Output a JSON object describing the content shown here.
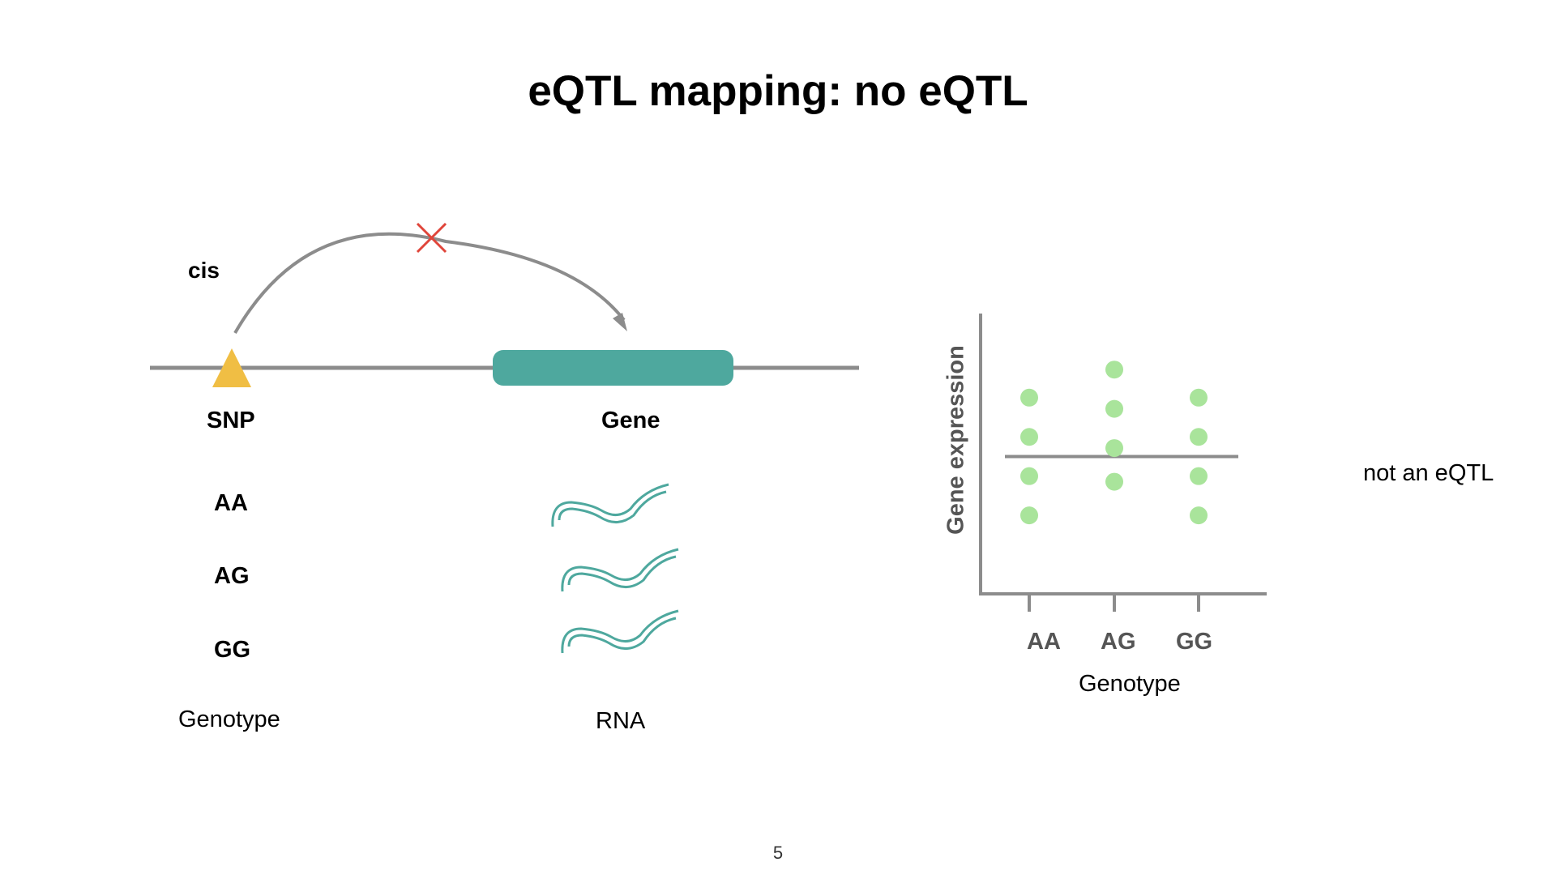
{
  "title": "eQTL mapping: no eQTL",
  "diagram": {
    "cis_label": "cis",
    "snp_label": "SNP",
    "gene_label": "Gene",
    "genotypes": [
      "AA",
      "AG",
      "GG"
    ],
    "genotype_caption": "Genotype",
    "rna_caption": "RNA",
    "colors": {
      "snp_marker": "#f0be44",
      "gene_body": "#4ea89e",
      "rna": "#4ea89e",
      "arrow": "#8c8c8c",
      "blocked_cross": "#e0453a"
    }
  },
  "plot": {
    "y_label": "Gene expression",
    "x_label": "Genotype",
    "categories": [
      "AA",
      "AG",
      "GG"
    ],
    "verdict": "not an eQTL",
    "colors": {
      "points": "#a9e49b",
      "axes": "#8c8c8c"
    }
  },
  "chart_data": {
    "type": "scatter",
    "categories": [
      "AA",
      "AG",
      "GG"
    ],
    "series": [
      {
        "values_by_category": [
          [
            3.5,
            2.8,
            2.1,
            1.4
          ],
          [
            4.0,
            3.3,
            2.6,
            2.0
          ],
          [
            3.5,
            2.8,
            2.1,
            1.4
          ]
        ]
      }
    ],
    "mean_line": 2.45,
    "xlabel": "Genotype",
    "ylabel": "Gene expression",
    "ylim": [
      0,
      5
    ],
    "grid": false
  },
  "page_number": "5"
}
